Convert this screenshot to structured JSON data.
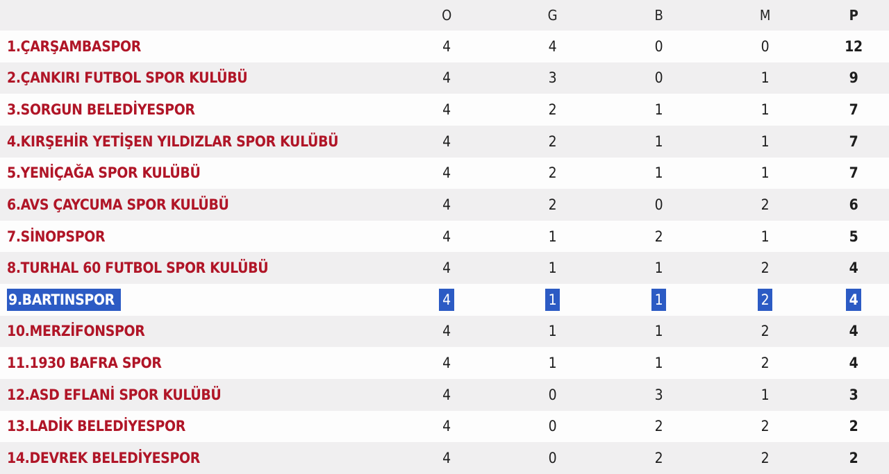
{
  "colors": {
    "row_bg": "#fdfdfd",
    "row_alt_bg": "#f0eff0",
    "team_name": "#b01527",
    "stat_text": "#1d1d1d",
    "header_text": "#222222",
    "selection_bg": "#2c5bc4",
    "selection_text": "#ffffff"
  },
  "standings": {
    "columns": [
      "O",
      "G",
      "B",
      "M",
      "P"
    ],
    "rows": [
      {
        "name": "1.ÇARŞAMBASPOR",
        "stats": [
          "4",
          "4",
          "0",
          "0",
          "12"
        ],
        "selected": false
      },
      {
        "name": "2.ÇANKIRI FUTBOL SPOR KULÜBÜ",
        "stats": [
          "4",
          "3",
          "0",
          "1",
          "9"
        ],
        "selected": false
      },
      {
        "name": "3.SORGUN BELEDİYESPOR",
        "stats": [
          "4",
          "2",
          "1",
          "1",
          "7"
        ],
        "selected": false
      },
      {
        "name": "4.KIRŞEHİR YETİŞEN YILDIZLAR SPOR KULÜBÜ",
        "stats": [
          "4",
          "2",
          "1",
          "1",
          "7"
        ],
        "selected": false
      },
      {
        "name": "5.YENİÇAĞA SPOR KULÜBÜ",
        "stats": [
          "4",
          "2",
          "1",
          "1",
          "7"
        ],
        "selected": false
      },
      {
        "name": "6.AVS ÇAYCUMA SPOR KULÜBÜ",
        "stats": [
          "4",
          "2",
          "0",
          "2",
          "6"
        ],
        "selected": false
      },
      {
        "name": "7.SİNOPSPOR",
        "stats": [
          "4",
          "1",
          "2",
          "1",
          "5"
        ],
        "selected": false
      },
      {
        "name": "8.TURHAL 60 FUTBOL SPOR KULÜBÜ",
        "stats": [
          "4",
          "1",
          "1",
          "2",
          "4"
        ],
        "selected": false
      },
      {
        "name": "9.BARTINSPOR",
        "stats": [
          "4",
          "1",
          "1",
          "2",
          "4"
        ],
        "selected": true
      },
      {
        "name": "10.MERZİFONSPOR",
        "stats": [
          "4",
          "1",
          "1",
          "2",
          "4"
        ],
        "selected": false
      },
      {
        "name": "11.1930 BAFRA SPOR",
        "stats": [
          "4",
          "1",
          "1",
          "2",
          "4"
        ],
        "selected": false
      },
      {
        "name": "12.ASD EFLANİ SPOR KULÜBÜ",
        "stats": [
          "4",
          "0",
          "3",
          "1",
          "3"
        ],
        "selected": false
      },
      {
        "name": "13.LADİK BELEDİYESPOR",
        "stats": [
          "4",
          "0",
          "2",
          "2",
          "2"
        ],
        "selected": false
      },
      {
        "name": "14.DEVREK BELEDİYESPOR",
        "stats": [
          "4",
          "0",
          "2",
          "2",
          "2"
        ],
        "selected": false
      }
    ]
  }
}
